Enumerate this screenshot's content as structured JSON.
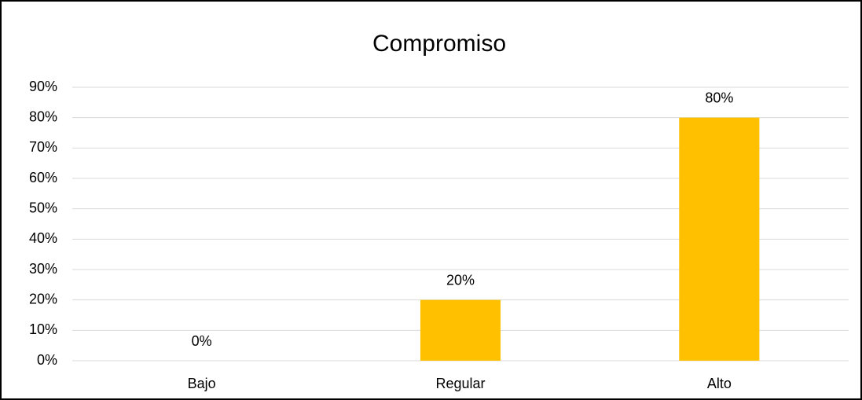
{
  "chart_data": {
    "type": "bar",
    "title": "Compromiso",
    "categories": [
      "Bajo",
      "Regular",
      "Alto"
    ],
    "values": [
      0,
      20,
      80
    ],
    "value_labels": [
      "0%",
      "20%",
      "80%"
    ],
    "color": "#ffc000",
    "ylim": [
      0,
      90
    ],
    "yticks": [
      {
        "value": 0,
        "label": "0%"
      },
      {
        "value": 10,
        "label": "10%"
      },
      {
        "value": 20,
        "label": "20%"
      },
      {
        "value": 30,
        "label": "30%"
      },
      {
        "value": 40,
        "label": "40%"
      },
      {
        "value": 50,
        "label": "50%"
      },
      {
        "value": 60,
        "label": "60%"
      },
      {
        "value": 70,
        "label": "70%"
      },
      {
        "value": 80,
        "label": "80%"
      },
      {
        "value": 90,
        "label": "90%"
      }
    ],
    "grid": true
  }
}
